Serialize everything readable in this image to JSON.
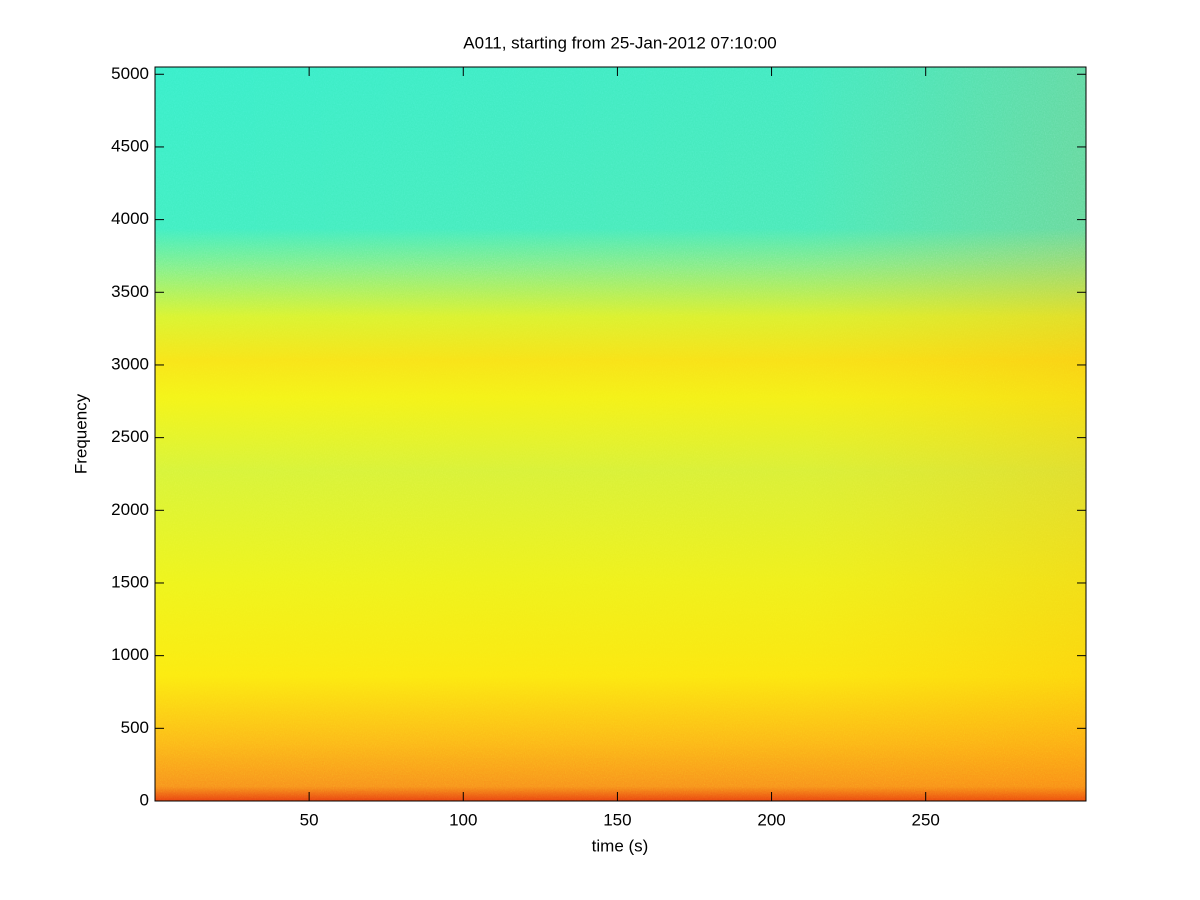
{
  "chart_data": {
    "type": "spectrogram",
    "title": "A011, starting from 25-Jan-2012 07:10:00",
    "x_label": "time (s)",
    "y_label": "Frequency",
    "xlim": [
      0,
      302
    ],
    "xticks": [
      50,
      100,
      150,
      200,
      250
    ],
    "ylim": [
      0,
      5050
    ],
    "yticks": [
      0,
      500,
      1000,
      1500,
      2000,
      2500,
      3000,
      3500,
      4000,
      4500,
      5000
    ],
    "colormap": "jet"
  }
}
